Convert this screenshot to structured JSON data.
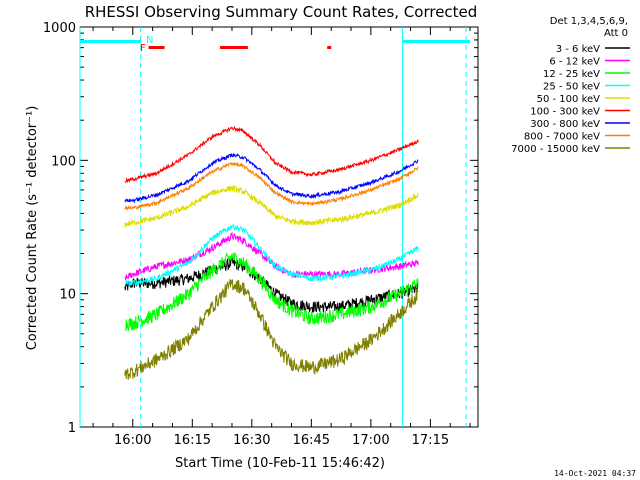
{
  "chart_data": {
    "type": "line",
    "title": "RHESSI Observing Summary Count Rates, Corrected",
    "xlabel": "Start Time (10-Feb-11 15:46:42)",
    "ylabel": "Corrected Count Rate (s⁻¹ detector⁻¹)",
    "x_ticks": [
      "16:00",
      "16:15",
      "16:30",
      "16:45",
      "17:00",
      "17:15"
    ],
    "y_ticks": [
      "1",
      "10",
      "100",
      "1000"
    ],
    "y_scale": "log",
    "ylim": [
      1,
      1000
    ],
    "xlim": [
      "15:46:42",
      "17:27:00"
    ],
    "legend_header": [
      "Det 1,3,4,5,6,9,",
      "Att 0"
    ],
    "timestamp": "14-Oct-2021 04:37",
    "flags": {
      "night_label": "N",
      "flare_label": "F",
      "saa_label": ""
    },
    "markers": {
      "sunlight_bar": {
        "color": "#00ffff",
        "start": [
          "15:46:42",
          "17:08:00"
        ],
        "end": [
          "16:02:00",
          "17:25:00"
        ]
      },
      "vertical_lines": {
        "color": "#00ffff",
        "solid": [
          "15:46:42",
          "17:08:00"
        ],
        "dashed": [
          "16:02:00",
          "17:24:00"
        ]
      },
      "flare_bars": {
        "color": "#ff0000",
        "ranges": [
          [
            "16:04:00",
            "16:08:00"
          ],
          [
            "16:22:00",
            "16:29:00"
          ],
          [
            "16:49:00",
            "16:50:00"
          ]
        ]
      }
    },
    "x_knots": [
      "15:58",
      "16:00",
      "16:06",
      "16:14",
      "16:20",
      "16:25",
      "16:28",
      "16:32",
      "16:36",
      "16:40",
      "16:45",
      "16:52",
      "17:00",
      "17:07",
      "17:12"
    ],
    "series": [
      {
        "name": "3 - 6 keV",
        "color": "#000000",
        "noise": 0.1,
        "values": [
          11,
          12,
          12,
          13,
          15,
          17,
          16,
          13,
          10,
          8.5,
          8,
          8,
          9,
          10,
          11
        ]
      },
      {
        "name": "6 - 12 keV",
        "color": "#ff00ff",
        "noise": 0.06,
        "values": [
          13,
          14,
          16,
          18,
          22,
          27,
          25,
          20,
          16,
          14,
          14,
          14,
          15,
          16,
          17
        ]
      },
      {
        "name": "12 - 25 keV",
        "color": "#00ff00",
        "noise": 0.12,
        "values": [
          6,
          6,
          7,
          10,
          15,
          19,
          17,
          13,
          9,
          7.5,
          6.5,
          7,
          8,
          10,
          12
        ]
      },
      {
        "name": "25 - 50 keV",
        "color": "#00ffff",
        "noise": 0.05,
        "values": [
          12,
          12,
          13,
          17,
          26,
          32,
          30,
          22,
          16,
          14,
          13,
          13.5,
          15,
          18,
          22
        ]
      },
      {
        "name": "50 - 100 keV",
        "color": "#dddd00",
        "noise": 0.05,
        "values": [
          33,
          34,
          37,
          45,
          57,
          62,
          58,
          48,
          38,
          35,
          34,
          36,
          40,
          46,
          55
        ]
      },
      {
        "name": "100 - 300 keV",
        "color": "#ff0000",
        "noise": 0.03,
        "values": [
          70,
          72,
          80,
          110,
          150,
          175,
          165,
          130,
          95,
          82,
          78,
          85,
          100,
          120,
          140
        ]
      },
      {
        "name": "300 - 800 keV",
        "color": "#0000ff",
        "noise": 0.03,
        "values": [
          50,
          50,
          55,
          70,
          95,
          110,
          105,
          85,
          65,
          56,
          54,
          58,
          68,
          82,
          100
        ]
      },
      {
        "name": "800 - 7000 keV",
        "color": "#ff8000",
        "noise": 0.03,
        "values": [
          44,
          44,
          48,
          62,
          82,
          95,
          90,
          74,
          57,
          49,
          47,
          51,
          60,
          72,
          88
        ]
      },
      {
        "name": "7000 - 15000 keV",
        "color": "#808000",
        "noise": 0.12,
        "values": [
          2.5,
          2.6,
          3.2,
          4.6,
          8,
          12,
          11,
          7,
          4,
          3,
          2.8,
          3.2,
          4.5,
          7,
          10
        ]
      }
    ]
  }
}
